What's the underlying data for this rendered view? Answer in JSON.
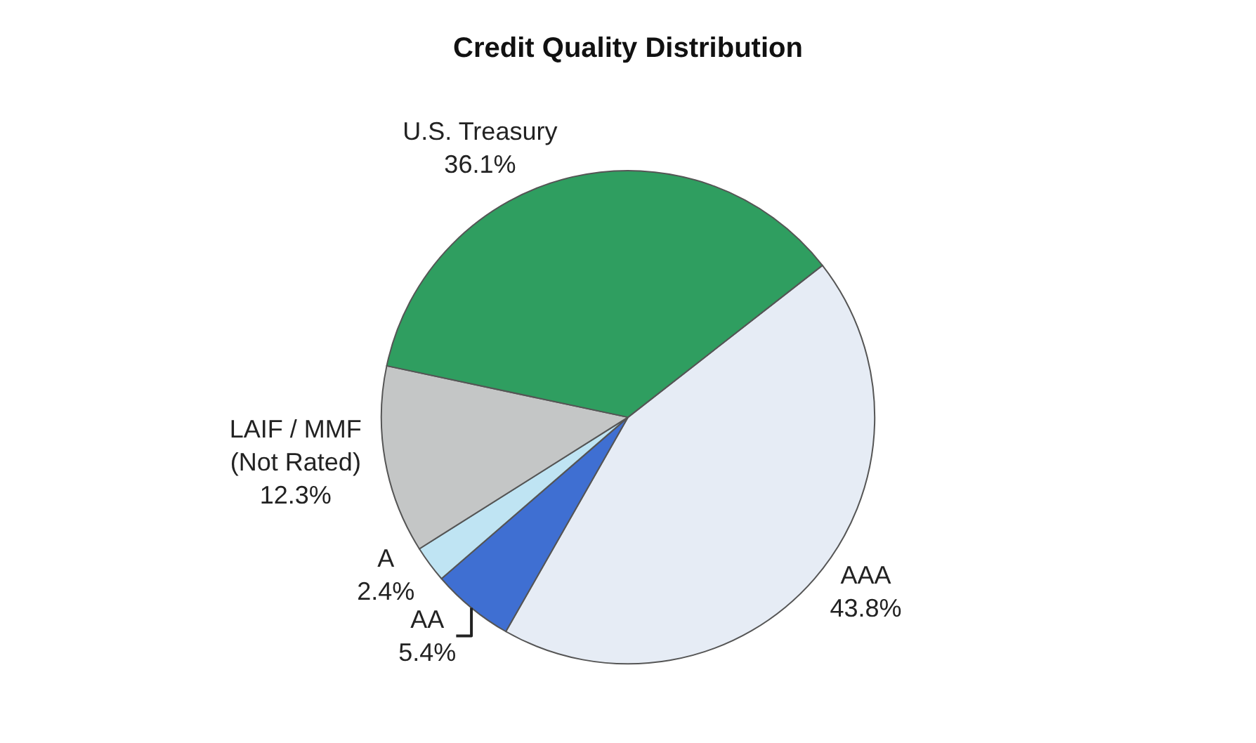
{
  "chart_data": {
    "type": "pie",
    "title": "Credit Quality Distribution",
    "categories": [
      "AAA",
      "AA",
      "A",
      "LAIF / MMF\n(Not Rated)",
      "U.S. Treasury"
    ],
    "values": [
      43.8,
      5.4,
      2.4,
      12.3,
      36.1
    ],
    "value_labels": [
      "43.8%",
      "5.4%",
      "2.4%",
      "12.3%",
      "36.1%"
    ],
    "colors": [
      "#e6ecf5",
      "#3f6fd2",
      "#bfe4f3",
      "#c4c6c6",
      "#2f9e60"
    ],
    "legend": false
  }
}
